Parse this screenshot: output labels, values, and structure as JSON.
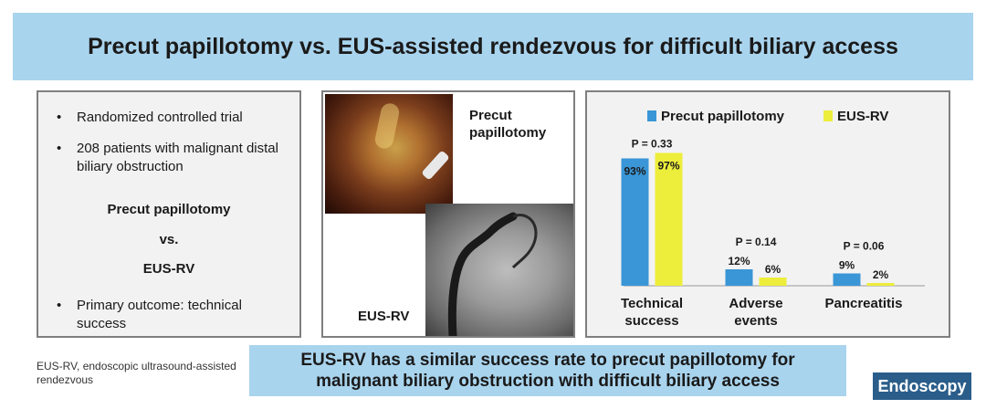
{
  "title": "Precut papillotomy vs. EUS-assisted rendezvous for difficult biliary access",
  "left_panel": {
    "bullets": [
      "Randomized controlled trial",
      "208 patients with malignant distal biliary obstruction"
    ],
    "comparison_a": "Precut papillotomy",
    "comparison_vs": "vs.",
    "comparison_b": "EUS-RV",
    "outcome": "Primary outcome:  technical success"
  },
  "images": {
    "top_label": "Precut papillotomy",
    "bottom_label": "EUS-RV"
  },
  "chart_data": {
    "type": "bar",
    "categories": [
      "Technical success",
      "Adverse events",
      "Pancreatitis"
    ],
    "series": [
      {
        "name": "Precut papillotomy",
        "color": "#3a96d6",
        "values": [
          93,
          12,
          9
        ]
      },
      {
        "name": "EUS-RV",
        "color": "#eded3c",
        "values": [
          97,
          6,
          2
        ]
      }
    ],
    "data_labels": [
      [
        "93%",
        "12%",
        "9%"
      ],
      [
        "97%",
        "6%",
        "2%"
      ]
    ],
    "p_values": [
      "P = 0.33",
      "P = 0.14",
      "P = 0.06"
    ],
    "ylim": [
      0,
      100
    ],
    "legend": "top"
  },
  "footnote": "EUS-RV, endoscopic ultrasound-assisted rendezvous",
  "conclusion": "EUS-RV has a similar success rate to precut papillotomy for malignant biliary obstruction with difficult biliary access",
  "logo": "Endoscopy"
}
